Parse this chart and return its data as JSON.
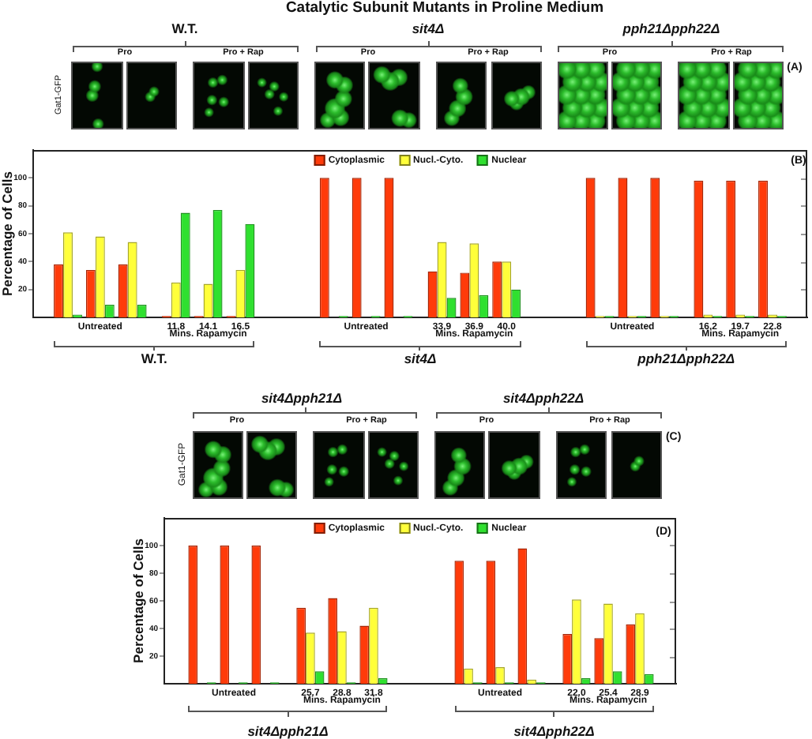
{
  "chart_data": [
    {
      "type": "bar",
      "title": "Catalytic Subunit Mutants in Proline Medium",
      "ylabel": "Percentage of Cells",
      "categories": [
        null,
        "Untreated",
        null,
        "11.8",
        "14.1",
        "16.5",
        null,
        "Untreated",
        null,
        "33.9",
        "36.9",
        "40.0",
        null,
        "Untreated",
        null,
        "16.2",
        "19.7",
        "22.8"
      ],
      "series": [
        {
          "name": "Cytoplasmic",
          "color": "#ff3b0a",
          "values": [
            38,
            34,
            38,
            1,
            1,
            1,
            100,
            100,
            100,
            33,
            32,
            40,
            100,
            100,
            100,
            98,
            98,
            98
          ]
        },
        {
          "name": "Nucl.-Cyto.",
          "color": "#ffff3a",
          "values": [
            61,
            58,
            54,
            25,
            24,
            34,
            null,
            null,
            null,
            54,
            53,
            40,
            1,
            1,
            1,
            2,
            2,
            2
          ]
        },
        {
          "name": "Nuclear",
          "color": "#2fe02f",
          "values": [
            2,
            9,
            9,
            75,
            77,
            67,
            1,
            1,
            1,
            14,
            16,
            20,
            1,
            1,
            1,
            1,
            1,
            1
          ]
        }
      ],
      "ylim": [
        0,
        120
      ],
      "yticks": [
        20,
        40,
        60,
        80,
        100
      ],
      "legend": "top",
      "annotations": [
        "W.T.",
        "sit4Δ",
        "pph21Δpph22Δ",
        "Pro",
        "Pro + Rap",
        "Pro",
        "Pro + Rap",
        "Pro",
        "Pro + Rap",
        "Gat1-GFP",
        "(A)",
        "(B)",
        "Mins. Rapamycin",
        "Mins. Rapamycin",
        "Mins. Rapamycin",
        "W.T.",
        "sit4Δ",
        "pph21Δpph22Δ"
      ]
    },
    {
      "type": "bar",
      "ylabel": "Percentage of Cells",
      "categories": [
        null,
        "Untreated",
        null,
        "25.7",
        "28.8",
        "31.8",
        null,
        "Untreated",
        null,
        "22.0",
        "25.4",
        "28.9"
      ],
      "series": [
        {
          "name": "Cytoplasmic",
          "color": "#ff3b0a",
          "values": [
            100,
            100,
            100,
            55,
            62,
            42,
            89,
            89,
            98,
            36,
            33,
            43
          ]
        },
        {
          "name": "Nucl.-Cyto.",
          "color": "#ffff3a",
          "values": [
            null,
            null,
            null,
            37,
            38,
            55,
            11,
            12,
            3,
            61,
            58,
            51
          ]
        },
        {
          "name": "Nuclear",
          "color": "#2fe02f",
          "values": [
            1,
            1,
            1,
            9,
            1,
            4,
            1,
            1,
            1,
            4,
            9,
            7
          ]
        }
      ],
      "ylim": [
        0,
        120
      ],
      "yticks": [
        20,
        40,
        60,
        80,
        100
      ],
      "legend": "top",
      "annotations": [
        "sit4Δpph21Δ",
        "sit4Δpph22Δ",
        "Pro",
        "Pro + Rap",
        "Pro",
        "Pro + Rap",
        "Gat1-GFP",
        "(C)",
        "(D)",
        "Mins. Rapamycin",
        "Mins. Rapamycin",
        "sit4Δpph21Δ",
        "sit4Δpph22Δ"
      ]
    }
  ]
}
